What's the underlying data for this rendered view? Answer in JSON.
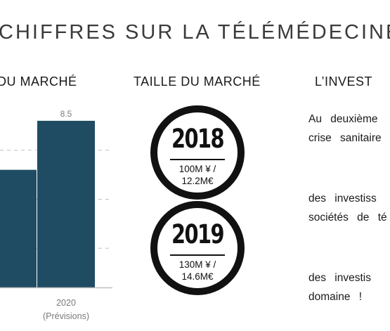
{
  "header": {
    "title": "CHIFFRES SUR LA TÉLÉMÉDECINE"
  },
  "sections": {
    "left_title": "DU MARCHÉ",
    "middle_title": "TAILLE DU MARCHÉ",
    "right_title": "L’INVEST"
  },
  "chart_data": {
    "type": "bar",
    "categories": [
      "",
      "2020\n(Prévisions)"
    ],
    "category_labels": [
      {
        "line1": "",
        "line2": ""
      },
      {
        "line1": "2020",
        "line2": "(Prévisions)"
      }
    ],
    "values": [
      6.0,
      8.5
    ],
    "data_labels": [
      "",
      "8.5"
    ],
    "ylim": [
      0,
      9.5
    ],
    "grid": true,
    "bar_color": "#1f4c63",
    "gridline_color": "#bfbfbf"
  },
  "market_size": [
    {
      "year": "2018",
      "value_line1": "100M ¥ /",
      "value_line2": "12.2M€"
    },
    {
      "year": "2019",
      "value_line1": "130M ¥ /",
      "value_line2": "14.6M€"
    }
  ],
  "investment_text": {
    "paragraph1": [
      "Au deuxième",
      "crise sanitaire"
    ],
    "paragraph2": [
      "des investiss",
      "sociétés de té"
    ],
    "paragraph3": [
      "des investis",
      "domaine !"
    ]
  }
}
